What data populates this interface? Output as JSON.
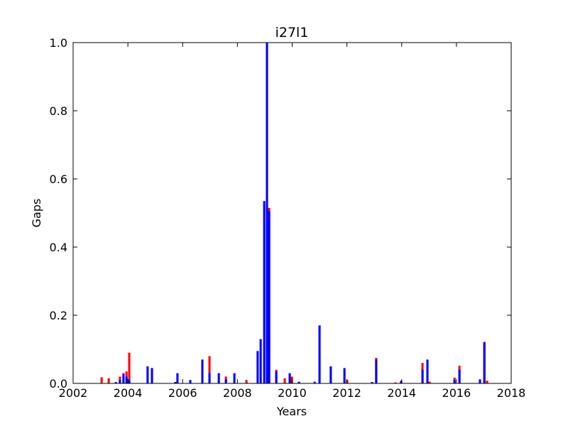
{
  "chart_data": {
    "type": "bar",
    "title": "i27l1",
    "xlabel": "Years",
    "ylabel": "Gaps",
    "x": [
      2003.04,
      2003.3,
      2003.56,
      2003.71,
      2003.84,
      2003.95,
      2004.05,
      2004.72,
      2004.88,
      2005.73,
      2005.81,
      2006.28,
      2006.72,
      2006.98,
      2007.32,
      2007.58,
      2007.89,
      2008.33,
      2008.74,
      2008.85,
      2008.98,
      2009.08,
      2009.16,
      2009.42,
      2009.73,
      2009.91,
      2009.99,
      2010.25,
      2010.82,
      2011.0,
      2011.41,
      2011.91,
      2012.01,
      2012.92,
      2013.07,
      2013.77,
      2013.98,
      2014.76,
      2014.94,
      2015.02,
      2015.93,
      2016.11,
      2016.86,
      2017.02,
      2017.12
    ],
    "series": [
      {
        "color": "#ff0000",
        "values": [
          0.018,
          0.015,
          null,
          0.02,
          0.03,
          0.035,
          0.09,
          null,
          null,
          null,
          null,
          null,
          0.01,
          0.08,
          null,
          0.02,
          null,
          0.01,
          null,
          null,
          null,
          null,
          0.515,
          0.04,
          0.015,
          0.025,
          0.02,
          null,
          null,
          null,
          null,
          null,
          0.01,
          null,
          0.075,
          0.003,
          null,
          0.06,
          null,
          0.005,
          0.017,
          0.052,
          null,
          0.122,
          0.008
        ]
      },
      {
        "color": "#0000ff",
        "values": [
          null,
          null,
          0.004,
          0.01,
          0.028,
          0.02,
          0.01,
          0.05,
          0.045,
          0.004,
          0.03,
          0.01,
          0.07,
          0.03,
          0.03,
          0.012,
          0.03,
          null,
          0.095,
          0.13,
          0.535,
          1.0,
          0.505,
          0.035,
          null,
          0.03,
          null,
          0.005,
          0.005,
          0.17,
          0.05,
          0.045,
          null,
          0.004,
          0.07,
          null,
          0.008,
          0.04,
          0.07,
          null,
          0.01,
          0.04,
          0.012,
          0.12,
          null
        ]
      }
    ],
    "xlim": [
      2002,
      2018
    ],
    "xticks": [
      2002,
      2004,
      2006,
      2008,
      2010,
      2012,
      2014,
      2016,
      2018
    ],
    "ylim": [
      0,
      1
    ],
    "yticks": [
      {
        "value": 0,
        "label": "0.0"
      },
      0.2,
      0.4,
      0.6,
      0.8,
      {
        "value": 1,
        "label": "1.0"
      }
    ]
  }
}
